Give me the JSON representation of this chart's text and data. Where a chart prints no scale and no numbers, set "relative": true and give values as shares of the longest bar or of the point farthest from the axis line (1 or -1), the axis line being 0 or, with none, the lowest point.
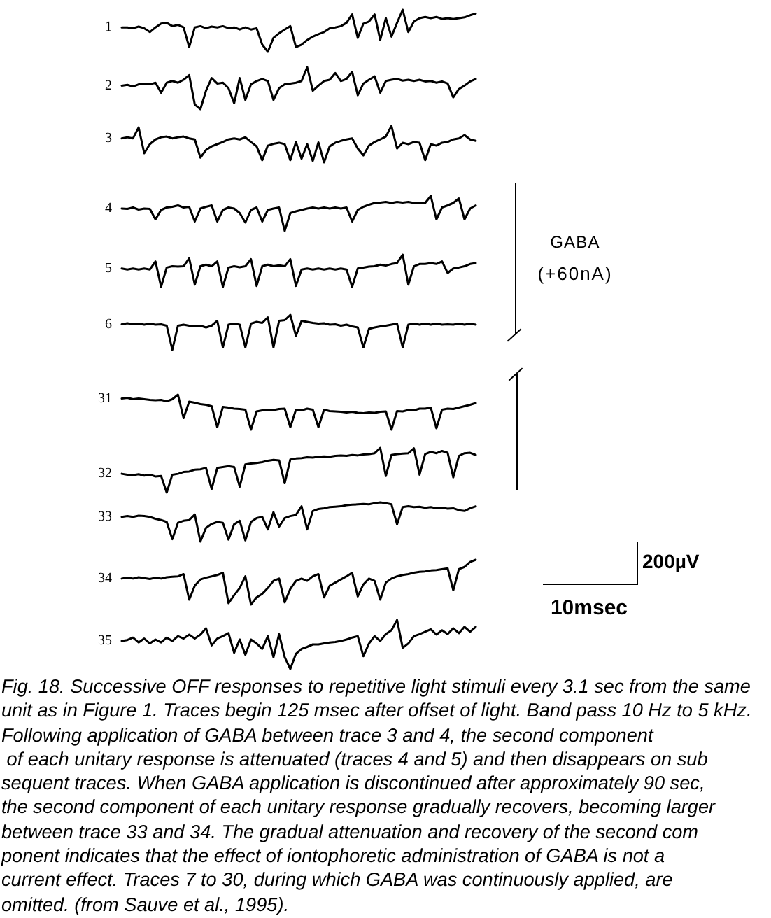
{
  "chart_data": [
    {
      "type": "line",
      "relative": true,
      "categories": [
        null,
        null,
        null,
        null,
        null,
        null,
        null,
        null,
        null,
        null,
        null,
        null,
        null,
        null,
        null,
        null,
        null,
        null,
        null,
        null,
        null,
        null,
        null,
        null,
        null,
        null,
        null,
        null,
        null,
        null,
        null,
        null,
        null,
        null,
        null,
        null,
        null,
        null,
        null,
        null,
        null,
        null,
        null,
        null,
        null,
        null,
        null,
        null,
        null,
        null,
        null,
        null,
        null,
        null,
        null,
        null,
        null,
        null,
        null,
        null,
        null,
        null,
        null,
        null
      ],
      "series": [
        {
          "name": "1",
          "color": "#000000",
          "values": [
            0.58,
            0.58,
            0.56,
            0.6,
            0.56,
            0.47,
            0.58,
            0.67,
            0.69,
            0.61,
            0.64,
            0.58,
            0.11,
            0.58,
            0.61,
            0.56,
            0.6,
            0.58,
            0.61,
            0.56,
            0.58,
            0.53,
            0.58,
            0.53,
            0.56,
            0.17,
            0,
            0.33,
            0.44,
            0.53,
            0.61,
            0.11,
            0.17,
            0.28,
            0.36,
            0.42,
            0.47,
            0.56,
            0.58,
            0.61,
            0.69,
            0.89,
            0.33,
            0.67,
            0.72,
            0.89,
            0.28,
            0.8,
            0.36,
            0.69,
            1,
            0.47,
            0.72,
            0.8,
            0.83,
            0.8,
            0.83,
            0.78,
            0.8,
            0.78,
            0.8,
            0.82,
            0.87,
            0.91
          ]
        }
      ]
    },
    {
      "type": "line",
      "relative": true,
      "categories": [
        null,
        null,
        null,
        null,
        null,
        null,
        null,
        null,
        null,
        null,
        null,
        null,
        null,
        null,
        null,
        null,
        null,
        null,
        null,
        null,
        null,
        null,
        null,
        null,
        null,
        null,
        null,
        null,
        null,
        null,
        null,
        null,
        null,
        null,
        null,
        null,
        null,
        null,
        null,
        null,
        null,
        null,
        null,
        null,
        null,
        null,
        null,
        null,
        null,
        null,
        null,
        null,
        null,
        null,
        null,
        null,
        null,
        null,
        null,
        null,
        null,
        null,
        null,
        null
      ],
      "series": [
        {
          "name": "2",
          "color": "#000000",
          "values": [
            0.56,
            0.58,
            0.54,
            0.59,
            0.61,
            0.59,
            0.63,
            0.39,
            0.63,
            0.67,
            0.63,
            0.7,
            0.81,
            0.11,
            0,
            0.44,
            0.74,
            0.61,
            0.63,
            0.5,
            0.14,
            0.74,
            0.22,
            0.59,
            0.67,
            0.72,
            0.67,
            0.22,
            0.5,
            0.59,
            0.61,
            0.63,
            0.67,
            1,
            0.44,
            0.56,
            0.67,
            0.7,
            0.86,
            0.67,
            0.72,
            0.89,
            0.33,
            0.61,
            0.7,
            0.78,
            0.39,
            0.67,
            0.7,
            0.72,
            0.68,
            0.7,
            0.67,
            0.7,
            0.66,
            0.67,
            0.63,
            0.66,
            0.61,
            0.28,
            0.48,
            0.56,
            0.66,
            0.72
          ]
        }
      ]
    },
    {
      "type": "line",
      "relative": true,
      "categories": [
        null,
        null,
        null,
        null,
        null,
        null,
        null,
        null,
        null,
        null,
        null,
        null,
        null,
        null,
        null,
        null,
        null,
        null,
        null,
        null,
        null,
        null,
        null,
        null,
        null,
        null,
        null,
        null,
        null,
        null,
        null,
        null,
        null,
        null,
        null,
        null,
        null,
        null,
        null,
        null,
        null,
        null,
        null,
        null,
        null,
        null,
        null,
        null,
        null,
        null,
        null,
        null,
        null,
        null,
        null,
        null,
        null,
        null,
        null,
        null,
        null,
        null,
        null,
        null
      ],
      "series": [
        {
          "name": "3",
          "color": "#000000",
          "values": [
            0.66,
            0.69,
            0.66,
            0.96,
            0.25,
            0.5,
            0.63,
            0.69,
            0.71,
            0.66,
            0.69,
            0.71,
            0.66,
            0.63,
            0.13,
            0.34,
            0.44,
            0.5,
            0.56,
            0.63,
            0.66,
            0.63,
            0.69,
            0.56,
            0.44,
            0.06,
            0.46,
            0.51,
            0.54,
            0.5,
            0.06,
            0.56,
            0.1,
            0.5,
            0.04,
            0.55,
            0,
            0.44,
            0.54,
            0.59,
            0.63,
            0.66,
            0.38,
            0.19,
            0.46,
            0.56,
            0.63,
            0.71,
            1,
            0.38,
            0.54,
            0.5,
            0.56,
            0.54,
            0.06,
            0.5,
            0.46,
            0.54,
            0.56,
            0.63,
            0.66,
            0.75,
            0.63,
            0.59
          ]
        }
      ]
    },
    {
      "type": "line",
      "relative": true,
      "categories": [
        null,
        null,
        null,
        null,
        null,
        null,
        null,
        null,
        null,
        null,
        null,
        null,
        null,
        null,
        null,
        null,
        null,
        null,
        null,
        null,
        null,
        null,
        null,
        null,
        null,
        null,
        null,
        null,
        null,
        null,
        null,
        null,
        null,
        null,
        null,
        null,
        null,
        null,
        null,
        null,
        null,
        null,
        null,
        null,
        null,
        null,
        null,
        null,
        null,
        null,
        null,
        null,
        null,
        null,
        null,
        null,
        null,
        null,
        null,
        null,
        null,
        null,
        null,
        null
      ],
      "series": [
        {
          "name": "4",
          "color": "#000000",
          "values": [
            0.64,
            0.63,
            0.67,
            0.61,
            0.64,
            0.63,
            0.33,
            0.6,
            0.67,
            0.69,
            0.73,
            0.67,
            0.69,
            0.27,
            0.64,
            0.69,
            0.73,
            0.27,
            0.6,
            0.67,
            0.64,
            0.51,
            0.24,
            0.6,
            0.67,
            0.27,
            0.6,
            0.64,
            0.67,
            0,
            0.51,
            0.56,
            0.6,
            0.64,
            0.67,
            0.64,
            0.67,
            0.64,
            0.67,
            0.64,
            0.67,
            0.27,
            0.6,
            0.69,
            0.75,
            0.8,
            0.81,
            0.83,
            0.8,
            0.83,
            0.81,
            0.83,
            0.8,
            0.81,
            0.8,
            1,
            0.33,
            0.67,
            0.73,
            0.8,
            0.93,
            0.33,
            0.64,
            0.73
          ]
        }
      ]
    },
    {
      "type": "line",
      "relative": true,
      "categories": [
        null,
        null,
        null,
        null,
        null,
        null,
        null,
        null,
        null,
        null,
        null,
        null,
        null,
        null,
        null,
        null,
        null,
        null,
        null,
        null,
        null,
        null,
        null,
        null,
        null,
        null,
        null,
        null,
        null,
        null,
        null,
        null,
        null,
        null,
        null,
        null,
        null,
        null,
        null,
        null,
        null,
        null,
        null,
        null,
        null,
        null,
        null,
        null,
        null,
        null,
        null,
        null,
        null,
        null,
        null,
        null,
        null,
        null,
        null,
        null,
        null,
        null,
        null,
        null
      ],
      "series": [
        {
          "name": "5",
          "color": "#000000",
          "values": [
            0.57,
            0.54,
            0.57,
            0.54,
            0.57,
            0.54,
            0.79,
            0,
            0.6,
            0.64,
            0.63,
            0.64,
            0.89,
            0.07,
            0.64,
            0.69,
            0.64,
            0.79,
            0,
            0.6,
            0.64,
            0.61,
            0.64,
            0.86,
            0.03,
            0.64,
            0.69,
            0.64,
            0.67,
            0.64,
            0.86,
            0.03,
            0.54,
            0.57,
            0.54,
            0.57,
            0.54,
            0.57,
            0.54,
            0.57,
            0.54,
            0,
            0.57,
            0.6,
            0.63,
            0.64,
            0.69,
            0.66,
            0.71,
            0.74,
            1,
            0.07,
            0.64,
            0.71,
            0.71,
            0.74,
            0.71,
            0.79,
            0.43,
            0.57,
            0.6,
            0.64,
            0.71,
            0.74
          ]
        }
      ],
      "annotations": [
        "GABA",
        "(+60nA)"
      ]
    },
    {
      "type": "line",
      "relative": true,
      "categories": [
        null,
        null,
        null,
        null,
        null,
        null,
        null,
        null,
        null,
        null,
        null,
        null,
        null,
        null,
        null,
        null,
        null,
        null,
        null,
        null,
        null,
        null,
        null,
        null,
        null,
        null,
        null,
        null,
        null,
        null,
        null,
        null,
        null,
        null,
        null,
        null,
        null,
        null,
        null,
        null,
        null,
        null,
        null,
        null,
        null,
        null,
        null,
        null,
        null,
        null,
        null,
        null,
        null,
        null,
        null,
        null,
        null,
        null,
        null,
        null,
        null,
        null,
        null,
        null
      ],
      "series": [
        {
          "name": "6",
          "color": "#000000",
          "values": [
            0.73,
            0.76,
            0.73,
            0.75,
            0.72,
            0.75,
            0.72,
            0.73,
            0.69,
            0,
            0.69,
            0.72,
            0.69,
            0.67,
            0.69,
            0.64,
            0.69,
            0.83,
            0.07,
            0.72,
            0.75,
            0.72,
            0.07,
            0.75,
            0.8,
            0.77,
            0.93,
            0.07,
            0.83,
            0.85,
            1,
            0.4,
            0.83,
            0.8,
            0.77,
            0.75,
            0.76,
            0.72,
            0.73,
            0.69,
            0.72,
            0.67,
            0.64,
            0.07,
            0.6,
            0.64,
            0.67,
            0.69,
            0.72,
            0.75,
            0.07,
            0.72,
            0.75,
            0.72,
            0.75,
            0.72,
            0.75,
            0.72,
            0.73,
            0.72,
            0.75,
            0.72,
            0.75,
            0.72
          ]
        }
      ]
    },
    {
      "type": "line",
      "relative": true,
      "categories": [
        null,
        null,
        null,
        null,
        null,
        null,
        null,
        null,
        null,
        null,
        null,
        null,
        null,
        null,
        null,
        null,
        null,
        null,
        null,
        null,
        null,
        null,
        null,
        null,
        null,
        null,
        null,
        null,
        null,
        null,
        null,
        null,
        null,
        null,
        null,
        null,
        null,
        null,
        null,
        null,
        null,
        null,
        null,
        null,
        null,
        null,
        null,
        null,
        null,
        null,
        null,
        null,
        null,
        null,
        null,
        null,
        null,
        null,
        null,
        null,
        null,
        null,
        null,
        null
      ],
      "series": [
        {
          "name": "31",
          "color": "#000000",
          "values": [
            0.89,
            0.91,
            0.87,
            0.89,
            0.87,
            0.85,
            0.84,
            0.85,
            0.81,
            0.87,
            1,
            0.33,
            0.8,
            0.77,
            0.73,
            0.71,
            0.67,
            0.07,
            0.65,
            0.63,
            0.6,
            0.59,
            0.57,
            0,
            0.52,
            0.55,
            0.57,
            0.56,
            0.59,
            0.6,
            0.07,
            0.57,
            0.55,
            0.6,
            0.57,
            0.07,
            0.57,
            0.53,
            0.52,
            0.51,
            0.49,
            0.51,
            0.48,
            0.47,
            0.49,
            0.48,
            0.51,
            0.52,
            0,
            0.53,
            0.52,
            0.56,
            0.55,
            0.6,
            0.6,
            0.63,
            0.04,
            0.57,
            0.6,
            0.59,
            0.63,
            0.67,
            0.71,
            0.76
          ]
        }
      ]
    },
    {
      "type": "line",
      "relative": true,
      "categories": [
        null,
        null,
        null,
        null,
        null,
        null,
        null,
        null,
        null,
        null,
        null,
        null,
        null,
        null,
        null,
        null,
        null,
        null,
        null,
        null,
        null,
        null,
        null,
        null,
        null,
        null,
        null,
        null,
        null,
        null,
        null,
        null,
        null,
        null,
        null,
        null,
        null,
        null,
        null,
        null,
        null,
        null,
        null,
        null,
        null,
        null,
        null,
        null,
        null,
        null,
        null,
        null,
        null,
        null,
        null,
        null,
        null,
        null,
        null,
        null,
        null,
        null,
        null,
        null
      ],
      "series": [
        {
          "name": "32",
          "color": "#000000",
          "values": [
            0.42,
            0.4,
            0.39,
            0.41,
            0.38,
            0.4,
            0.36,
            0.37,
            0,
            0.4,
            0.42,
            0.46,
            0.47,
            0.51,
            0.52,
            0.55,
            0.08,
            0.55,
            0.57,
            0.59,
            0.57,
            0.13,
            0.63,
            0.65,
            0.66,
            0.68,
            0.71,
            0.73,
            0.72,
            0.21,
            0.74,
            0.76,
            0.77,
            0.79,
            0.78,
            0.8,
            0.81,
            0.8,
            0.82,
            0.83,
            0.82,
            0.84,
            0.83,
            0.85,
            0.86,
            0.88,
            1,
            0.37,
            0.84,
            0.86,
            0.87,
            0.88,
            0.99,
            0.4,
            0.86,
            0.91,
            0.88,
            0.93,
            0.89,
            0.34,
            0.82,
            0.88,
            0.89,
            0.84
          ]
        }
      ]
    },
    {
      "type": "line",
      "relative": true,
      "categories": [
        null,
        null,
        null,
        null,
        null,
        null,
        null,
        null,
        null,
        null,
        null,
        null,
        null,
        null,
        null,
        null,
        null,
        null,
        null,
        null,
        null,
        null,
        null,
        null,
        null,
        null,
        null,
        null,
        null,
        null,
        null,
        null,
        null,
        null,
        null,
        null,
        null,
        null,
        null,
        null,
        null,
        null,
        null,
        null,
        null,
        null,
        null,
        null,
        null,
        null,
        null,
        null,
        null,
        null,
        null,
        null,
        null,
        null,
        null,
        null,
        null,
        null,
        null,
        null
      ],
      "series": [
        {
          "name": "33",
          "color": "#000000",
          "values": [
            0.63,
            0.65,
            0.63,
            0.66,
            0.65,
            0.63,
            0.58,
            0.55,
            0.5,
            0.06,
            0.48,
            0.53,
            0.55,
            0.69,
            0,
            0.35,
            0.45,
            0.5,
            0.48,
            0.05,
            0.44,
            0.53,
            0.03,
            0.5,
            0.6,
            0.63,
            0.31,
            0.75,
            0.38,
            0.6,
            0.65,
            0.68,
            0.9,
            0.31,
            0.78,
            0.83,
            0.85,
            0.88,
            0.89,
            0.9,
            0.93,
            0.94,
            0.95,
            0.96,
            0.95,
            0.98,
            1,
            0.98,
            0.95,
            0.44,
            0.88,
            0.9,
            0.88,
            0.89,
            0.86,
            0.88,
            0.85,
            0.86,
            0.84,
            0.85,
            0.8,
            0.78,
            0.85,
            0.9
          ]
        }
      ]
    },
    {
      "type": "line",
      "relative": true,
      "categories": [
        null,
        null,
        null,
        null,
        null,
        null,
        null,
        null,
        null,
        null,
        null,
        null,
        null,
        null,
        null,
        null,
        null,
        null,
        null,
        null,
        null,
        null,
        null,
        null,
        null,
        null,
        null,
        null,
        null,
        null,
        null,
        null,
        null,
        null,
        null,
        null,
        null,
        null,
        null,
        null,
        null,
        null,
        null,
        null,
        null,
        null,
        null,
        null,
        null,
        null,
        null,
        null,
        null,
        null,
        null,
        null,
        null,
        null,
        null,
        null,
        null,
        null,
        null,
        null
      ],
      "series": [
        {
          "name": "34",
          "color": "#000000",
          "values": [
            0.58,
            0.6,
            0.58,
            0.61,
            0.59,
            0.57,
            0.6,
            0.58,
            0.61,
            0.62,
            0.63,
            0.68,
            0.11,
            0.42,
            0.56,
            0.6,
            0.63,
            0.66,
            0.71,
            0.03,
            0.21,
            0.37,
            0.63,
            0,
            0.16,
            0.24,
            0.37,
            0.53,
            0.58,
            0.05,
            0.35,
            0.53,
            0.58,
            0.53,
            0.63,
            0.68,
            0.16,
            0.42,
            0.49,
            0.56,
            0.63,
            0.71,
            0.18,
            0.45,
            0.58,
            0.53,
            0.11,
            0.49,
            0.58,
            0.63,
            0.66,
            0.68,
            0.71,
            0.73,
            0.74,
            0.76,
            0.77,
            0.79,
            0.81,
            0.32,
            0.79,
            0.84,
            0.95,
            1
          ]
        }
      ],
      "annotations": [
        "200µV",
        "10msec"
      ]
    },
    {
      "type": "line",
      "relative": true,
      "categories": [
        null,
        null,
        null,
        null,
        null,
        null,
        null,
        null,
        null,
        null,
        null,
        null,
        null,
        null,
        null,
        null,
        null,
        null,
        null,
        null,
        null,
        null,
        null,
        null,
        null,
        null,
        null,
        null,
        null,
        null,
        null,
        null,
        null,
        null,
        null,
        null,
        null,
        null,
        null,
        null,
        null,
        null,
        null,
        null,
        null,
        null,
        null,
        null,
        null,
        null,
        null,
        null,
        null,
        null,
        null,
        null,
        null,
        null,
        null,
        null,
        null,
        null,
        null,
        null
      ],
      "series": [
        {
          "name": "35",
          "color": "#000000",
          "values": [
            0.57,
            0.59,
            0.64,
            0.54,
            0.62,
            0.52,
            0.6,
            0.54,
            0.64,
            0.57,
            0.67,
            0.62,
            0.7,
            0.62,
            0.7,
            0.83,
            0.48,
            0.62,
            0.67,
            0.73,
            0.33,
            0.6,
            0.29,
            0.6,
            0.52,
            0.41,
            0.67,
            0.24,
            0.71,
            0.24,
            0,
            0.31,
            0.41,
            0.45,
            0.5,
            0.5,
            0.52,
            0.54,
            0.55,
            0.57,
            0.6,
            0.64,
            0.67,
            0.26,
            0.52,
            0.67,
            0.57,
            0.71,
            0.79,
            1,
            0.43,
            0.52,
            0.67,
            0.71,
            0.76,
            0.81,
            0.7,
            0.79,
            0.71,
            0.83,
            0.73,
            0.86,
            0.76,
            0.86
          ]
        }
      ],
      "annotations": [
        "Fig. 18. Successive OFF responses to repetitive light stimuli every 3.1 sec from the same\nunit as in Figure 1. Traces begin 125 msec after offset of light. Band pass 10 Hz to 5 kHz.\nFollowing application of GABA between trace 3 and 4, the second component\n of each unitary response is attenuated (traces 4 and 5) and then disappears on sub\nsequent traces. When GABA application is discontinued after approximately 90 sec,\nthe second component of each unitary response gradually recovers, becoming larger\nbetween trace 33 and 34. The gradual attenuation and recovery of the second com\nponent indicates that the effect of iontophoretic administration of GABA is not a\ncurrent effect. Traces 7 to 30, during which GABA was continuously applied, are\nomitted. (from Sauve et al., 1995)."
      ]
    }
  ]
}
